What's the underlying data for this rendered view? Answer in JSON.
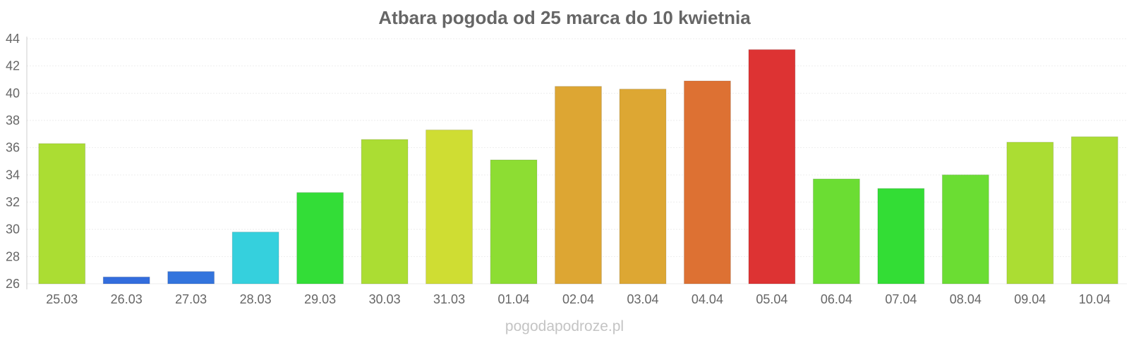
{
  "chart_data": {
    "type": "bar",
    "title": "Atbara pogoda od 25 marca do 10 kwietnia",
    "xlabel": "",
    "ylabel": "",
    "ylim": [
      26,
      44
    ],
    "yticks": [
      26,
      28,
      30,
      32,
      34,
      36,
      38,
      40,
      42,
      44
    ],
    "grid": true,
    "legend": "none",
    "categories": [
      "25.03",
      "26.03",
      "27.03",
      "28.03",
      "29.03",
      "30.03",
      "31.03",
      "01.04",
      "02.04",
      "03.04",
      "04.04",
      "05.04",
      "06.04",
      "07.04",
      "08.04",
      "09.04",
      "10.04"
    ],
    "values": [
      36.3,
      26.5,
      26.9,
      29.8,
      32.7,
      36.6,
      37.3,
      35.1,
      40.5,
      40.3,
      40.9,
      43.2,
      33.7,
      33.0,
      34.0,
      36.4,
      36.8
    ],
    "colors": [
      "#abdd33",
      "#336ddd",
      "#3374dd",
      "#35d0dd",
      "#33dd37",
      "#abdd33",
      "#cfdd33",
      "#8ddd33",
      "#dda633",
      "#dda733",
      "#dd7133",
      "#dd3333",
      "#6bdd33",
      "#33dd35",
      "#6bdd33",
      "#abdd33",
      "#abdd33"
    ]
  },
  "watermark": "pogodapodroze.pl"
}
